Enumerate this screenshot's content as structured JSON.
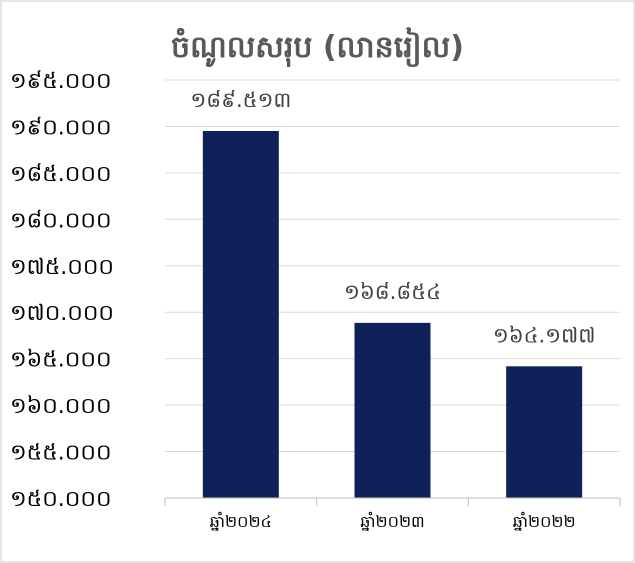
{
  "chart_data": {
    "type": "bar",
    "title": "ចំណូលសរុប (លានរៀល)",
    "xlabel": "",
    "ylabel": "",
    "categories": [
      "ឆ្នាំ២០២៤",
      "ឆ្នាំ២០២៣",
      "ឆ្នាំ២០២២"
    ],
    "values": [
      189.513,
      168.854,
      164.177
    ],
    "data_labels": [
      "១៨៩.៥១៣",
      "១៦៨.៨៥៤",
      "១៦៤.១៧៧"
    ],
    "ylim": [
      150,
      195
    ],
    "yticks": [
      150,
      155,
      160,
      165,
      170,
      175,
      180,
      185,
      190,
      195
    ],
    "ytick_labels": [
      "១៥០.០០០",
      "១៥៥.០០០",
      "១៦០.០០០",
      "១៦៥.០០០",
      "១៧០.០០០",
      "១៧៥.០០០",
      "១៨០.០០០",
      "១៨៥.០០០",
      "១៩០.០០០",
      "១៩៥.០០០"
    ],
    "grid": true,
    "legend": "none",
    "bar_color": "#0e2259"
  }
}
